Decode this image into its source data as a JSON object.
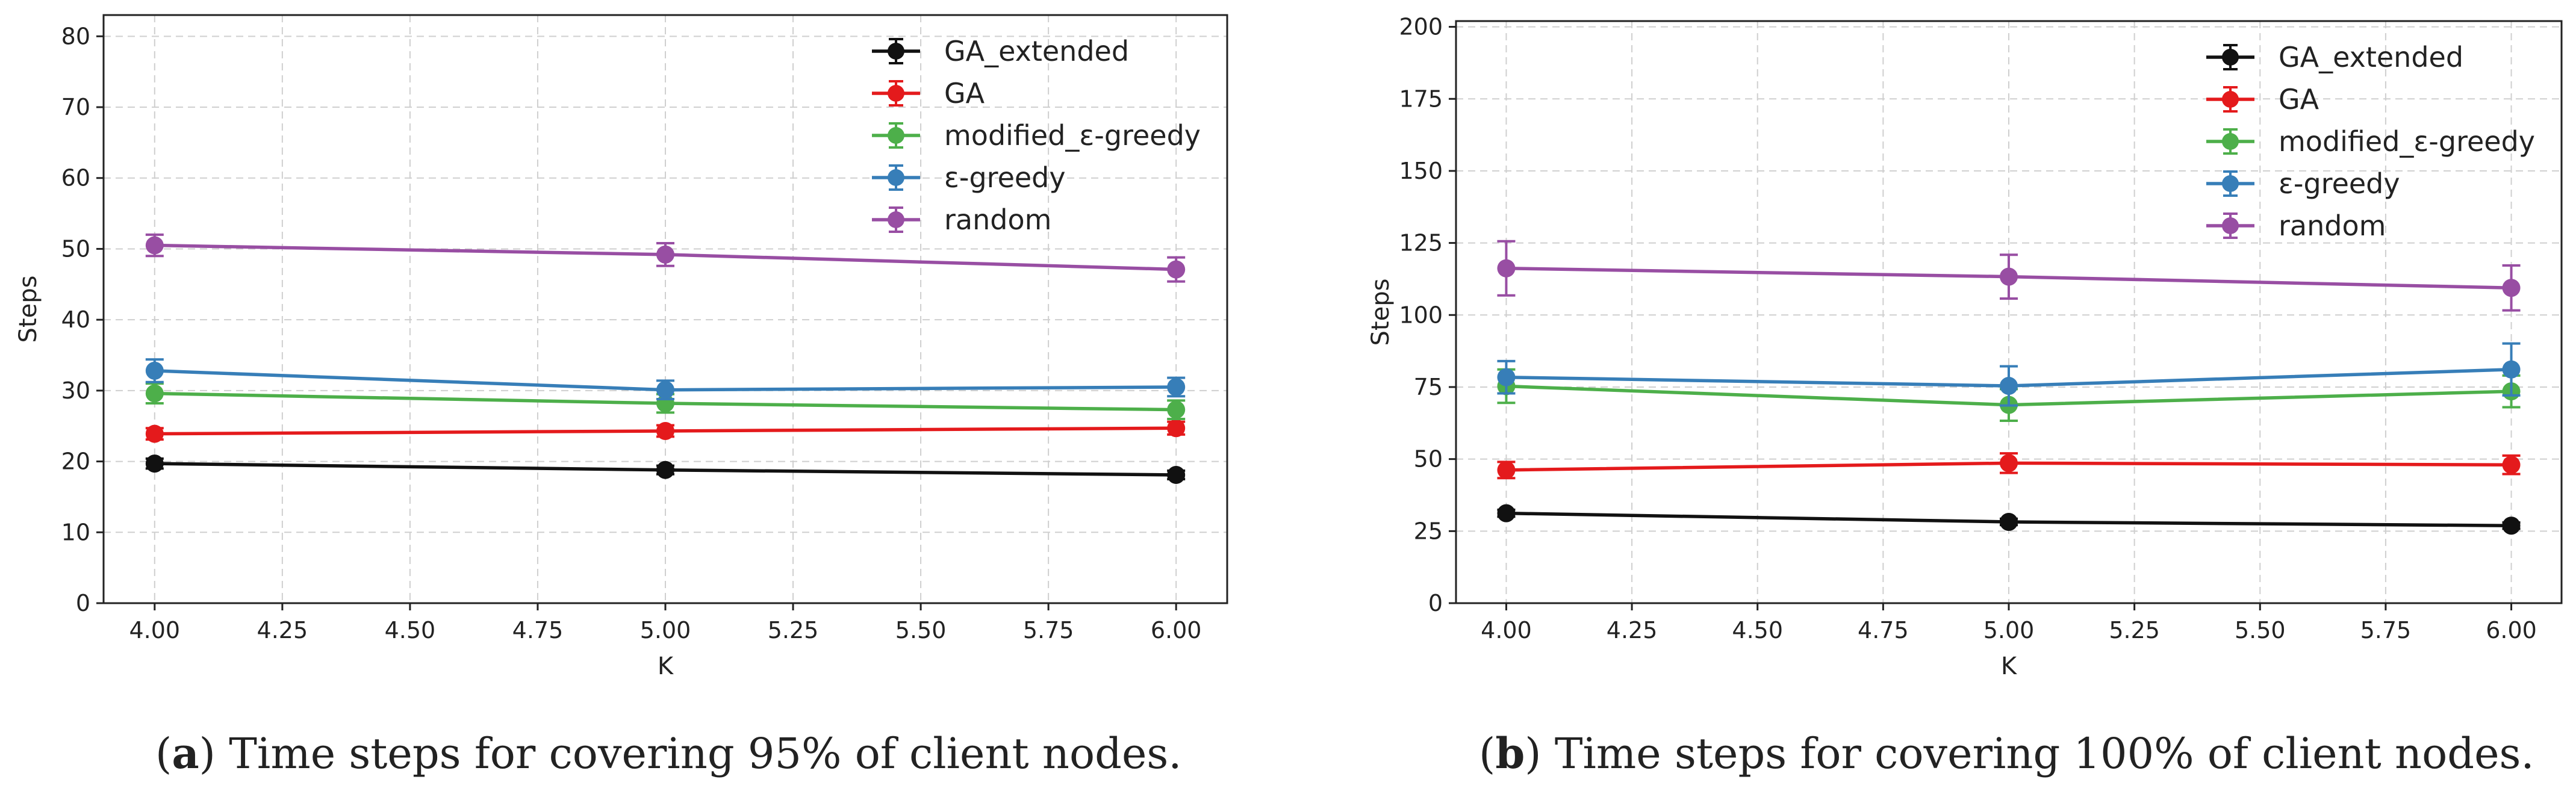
{
  "chart_data": [
    {
      "type": "line",
      "panel": "a",
      "title": "",
      "xlabel": "K",
      "ylabel": "Steps",
      "xlim": [
        3.9,
        6.1
      ],
      "ylim": [
        0,
        83
      ],
      "xticks": [
        "4.00",
        "4.25",
        "4.50",
        "4.75",
        "5.00",
        "5.25",
        "5.50",
        "5.75",
        "6.00"
      ],
      "yticks": [
        "0",
        "10",
        "20",
        "30",
        "40",
        "50",
        "60",
        "70",
        "80"
      ],
      "grid": true,
      "legend_position": "top-right",
      "x": [
        4,
        5,
        6
      ],
      "series": [
        {
          "name": "GA_extended",
          "color": "#111111",
          "values": [
            19.7,
            18.8,
            18.1
          ],
          "err": [
            0.7,
            0.6,
            0.6
          ]
        },
        {
          "name": "GA",
          "color": "#e41a1c",
          "values": [
            23.9,
            24.3,
            24.7
          ],
          "err": [
            0.8,
            0.8,
            0.9
          ]
        },
        {
          "name": "modified_ε-greedy",
          "color": "#4daf4a",
          "values": [
            29.6,
            28.2,
            27.3
          ],
          "err": [
            1.4,
            1.3,
            1.3
          ]
        },
        {
          "name": "ε-greedy",
          "color": "#377eb8",
          "values": [
            32.8,
            30.1,
            30.5
          ],
          "err": [
            1.6,
            1.3,
            1.3
          ]
        },
        {
          "name": "random",
          "color": "#984ea3",
          "values": [
            50.5,
            49.2,
            47.1
          ],
          "err": [
            1.5,
            1.6,
            1.7
          ]
        }
      ],
      "caption": {
        "label": "a",
        "text": " Time steps for covering 95% of client nodes."
      }
    },
    {
      "type": "line",
      "panel": "b",
      "title": "",
      "xlabel": "K",
      "ylabel": "Steps",
      "xlim": [
        3.9,
        6.1
      ],
      "ylim": [
        0,
        202
      ],
      "xticks": [
        "4.00",
        "4.25",
        "4.50",
        "4.75",
        "5.00",
        "5.25",
        "5.50",
        "5.75",
        "6.00"
      ],
      "yticks": [
        "0",
        "25",
        "50",
        "75",
        "100",
        "125",
        "150",
        "175",
        "200"
      ],
      "grid": true,
      "legend_position": "top-right",
      "x": [
        4,
        5,
        6
      ],
      "series": [
        {
          "name": "GA_extended",
          "color": "#111111",
          "values": [
            31.2,
            28.2,
            26.9
          ],
          "err": [
            1.2,
            1.1,
            1.1
          ]
        },
        {
          "name": "GA",
          "color": "#e41a1c",
          "values": [
            46.2,
            48.6,
            48.0
          ],
          "err": [
            2.8,
            3.4,
            3.2
          ]
        },
        {
          "name": "modified_ε-greedy",
          "color": "#4daf4a",
          "values": [
            75.3,
            68.8,
            73.5
          ],
          "err": [
            5.8,
            5.5,
            5.5
          ]
        },
        {
          "name": "ε-greedy",
          "color": "#377eb8",
          "values": [
            78.4,
            75.4,
            81.1
          ],
          "err": [
            5.6,
            6.8,
            9.0
          ]
        },
        {
          "name": "random",
          "color": "#984ea3",
          "values": [
            116.2,
            113.3,
            109.4
          ],
          "err": [
            9.4,
            7.6,
            7.8
          ]
        }
      ],
      "caption": {
        "label": "b",
        "text": " Time steps for covering 100% of client nodes."
      }
    }
  ]
}
